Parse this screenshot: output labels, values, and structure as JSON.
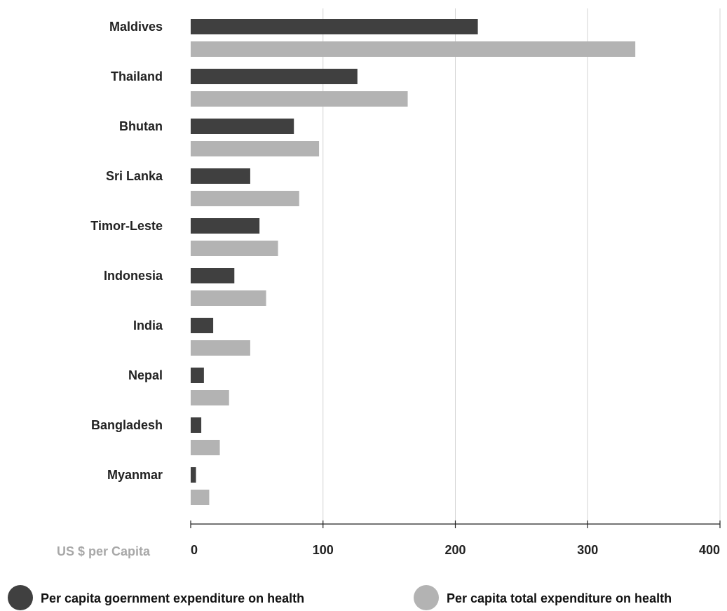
{
  "chart_data": {
    "type": "bar",
    "orientation": "horizontal",
    "title": "",
    "xlabel": "US $ per Capita",
    "ylabel": "",
    "xlim": [
      0,
      400
    ],
    "xticks": [
      0,
      100,
      200,
      300,
      400
    ],
    "grid": "vertical",
    "legend_position": "bottom",
    "categories": [
      "Maldives",
      "Thailand",
      "Bhutan",
      "Sri Lanka",
      "Timor-Leste",
      "Indonesia",
      "India",
      "Nepal",
      "Bangladesh",
      "Myanmar"
    ],
    "series": [
      {
        "name": "Per capita goernment expenditure on health",
        "color": "#404040",
        "values": [
          217,
          126,
          78,
          45,
          52,
          33,
          17,
          10,
          8,
          4
        ]
      },
      {
        "name": "Per capita total expenditure on health",
        "color": "#b3b3b3",
        "values": [
          336,
          164,
          97,
          82,
          66,
          57,
          45,
          29,
          22,
          14
        ]
      }
    ]
  }
}
